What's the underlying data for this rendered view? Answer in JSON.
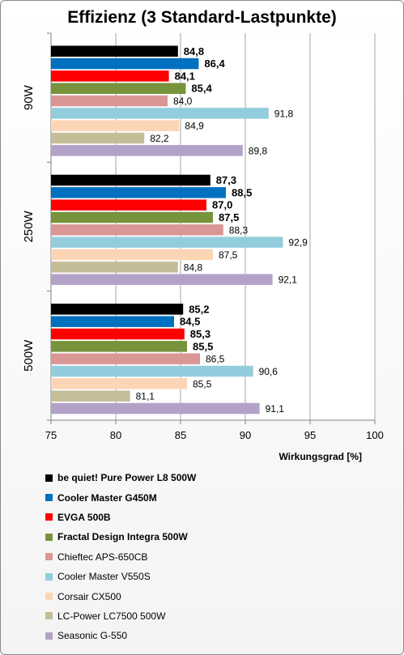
{
  "chart_data": {
    "type": "bar",
    "orientation": "horizontal",
    "title": "Effizienz (3 Standard-Lastpunkte)",
    "xlabel": "Wirkungsgrad [%]",
    "ylabel": "",
    "xlim": [
      75,
      100
    ],
    "xticks": [
      "75",
      "80",
      "85",
      "90",
      "95",
      "100"
    ],
    "categories": [
      "90W",
      "250W",
      "500W"
    ],
    "grid": true,
    "legend_position": "bottom",
    "series": [
      {
        "name": "be quiet! Pure Power L8 500W",
        "color": "#000000",
        "bold": true,
        "values": [
          84.8,
          87.3,
          85.2
        ],
        "labels": [
          "84,8",
          "87,3",
          "85,2"
        ]
      },
      {
        "name": "Cooler Master G450M",
        "color": "#0070c0",
        "bold": true,
        "values": [
          86.4,
          88.5,
          84.5
        ],
        "labels": [
          "86,4",
          "88,5",
          "84,5"
        ]
      },
      {
        "name": "EVGA 500B",
        "color": "#ff0000",
        "bold": true,
        "values": [
          84.1,
          87.0,
          85.3
        ],
        "labels": [
          "84,1",
          "87,0",
          "85,3"
        ]
      },
      {
        "name": "Fractal Design Integra 500W",
        "color": "#77933c",
        "bold": true,
        "values": [
          85.4,
          87.5,
          85.5
        ],
        "labels": [
          "85,4",
          "87,5",
          "85,5"
        ]
      },
      {
        "name": "Chieftec APS-650CB",
        "color": "#d99694",
        "bold": false,
        "values": [
          84.0,
          88.3,
          86.5
        ],
        "labels": [
          "84,0",
          "88,3",
          "86,5"
        ]
      },
      {
        "name": "Cooler Master V550S",
        "color": "#93cddd",
        "bold": false,
        "values": [
          91.8,
          92.9,
          90.6
        ],
        "labels": [
          "91,8",
          "92,9",
          "90,6"
        ]
      },
      {
        "name": "Corsair CX500",
        "color": "#fcd5b5",
        "bold": false,
        "values": [
          84.9,
          87.5,
          85.5
        ],
        "labels": [
          "84,9",
          "87,5",
          "85,5"
        ]
      },
      {
        "name": "LC-Power LC7500 500W",
        "color": "#c4bd97",
        "bold": false,
        "values": [
          82.2,
          84.8,
          81.1
        ],
        "labels": [
          "82,2",
          "84,8",
          "81,1"
        ]
      },
      {
        "name": "Seasonic G-550",
        "color": "#b3a2c7",
        "bold": false,
        "values": [
          89.8,
          92.1,
          91.1
        ],
        "labels": [
          "89,8",
          "92,1",
          "91,1"
        ]
      }
    ]
  }
}
